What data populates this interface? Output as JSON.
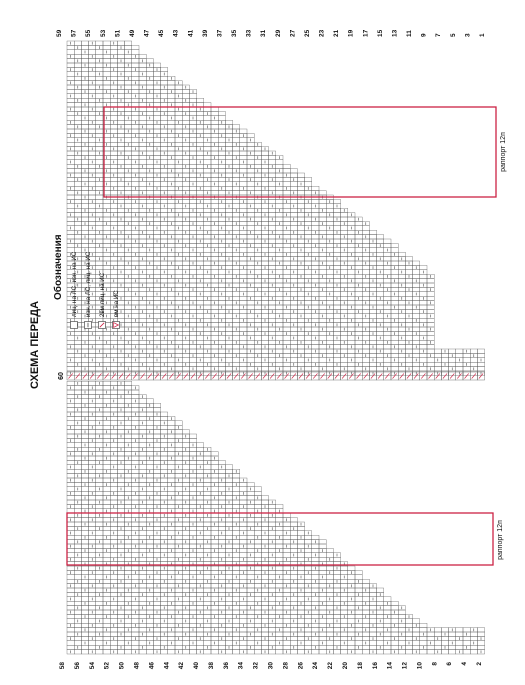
{
  "title": "СХЕМА ПЕРЕДА",
  "center_row_label": "60",
  "legend": {
    "heading": "Обозначения",
    "items": [
      {
        "symbol": "blank",
        "text": "лиц. на ЛС, изн. на ИС"
      },
      {
        "symbol": "dash",
        "text": "изн. на ЛС, лиц. на ИС"
      },
      {
        "symbol": "slash",
        "text": "2вм лиц. на ИС"
      },
      {
        "symbol": "triangle",
        "text": "вм на ИС"
      }
    ]
  },
  "repeat_label": "раппорт 12п",
  "rows_left": [
    "58",
    "56",
    "54",
    "52",
    "50",
    "48",
    "46",
    "44",
    "42",
    "40",
    "38",
    "36",
    "34",
    "32",
    "30",
    "28",
    "26",
    "24",
    "22",
    "20",
    "18",
    "16",
    "14",
    "12",
    "10",
    "8",
    "6",
    "4",
    "2"
  ],
  "rows_right": [
    "59",
    "57",
    "55",
    "53",
    "51",
    "49",
    "47",
    "45",
    "43",
    "41",
    "39",
    "37",
    "35",
    "33",
    "31",
    "29",
    "27",
    "25",
    "23",
    "21",
    "19",
    "17",
    "15",
    "13",
    "11",
    "9",
    "7",
    "5",
    "3",
    "1"
  ],
  "colors": {
    "grid": "#555555",
    "repeat": "#cc2244",
    "mark": "#333333",
    "accent": "#cc2244"
  }
}
